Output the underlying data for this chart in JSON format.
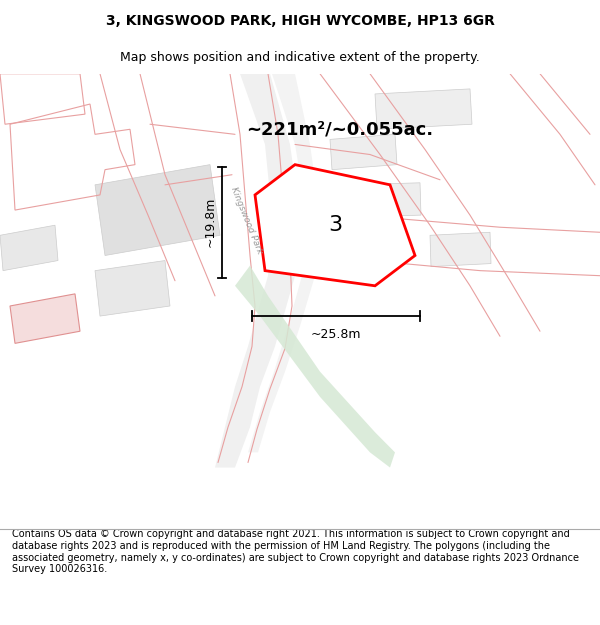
{
  "title": "3, KINGSWOOD PARK, HIGH WYCOMBE, HP13 6GR",
  "subtitle": "Map shows position and indicative extent of the property.",
  "footer": "Contains OS data © Crown copyright and database right 2021. This information is subject to Crown copyright and database rights 2023 and is reproduced with the permission of HM Land Registry. The polygons (including the associated geometry, namely x, y co-ordinates) are subject to Crown copyright and database rights 2023 Ordnance Survey 100026316.",
  "area_label": "~221m²/~0.055ac.",
  "road_label": "Kingswood Park",
  "property_number": "3",
  "width_label": "~25.8m",
  "height_label": "~19.8m",
  "bg_color": "#ffffff",
  "map_bg": "#ffffff",
  "title_fontsize": 10,
  "subtitle_fontsize": 9,
  "footer_fontsize": 7.0
}
